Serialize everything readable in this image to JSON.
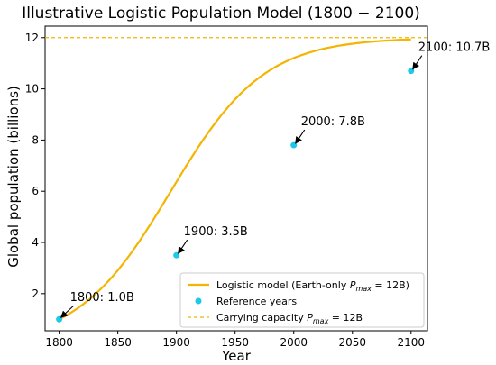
{
  "chart_data": {
    "type": "line",
    "title": "Illustrative Logistic Population Model (1800 − 2100)",
    "xlabel": "Year",
    "ylabel": "Global population (billions)",
    "xlim": [
      1788,
      2114
    ],
    "ylim": [
      0.55,
      12.45
    ],
    "xticks": [
      1800,
      1850,
      1900,
      1950,
      2000,
      2050,
      2100
    ],
    "yticks": [
      2,
      4,
      6,
      8,
      10,
      12
    ],
    "logistic": {
      "pmax": 12,
      "p0": 1.0,
      "r": 0.0252,
      "t0": 1800
    },
    "curve_color": "#f4b400",
    "point_color": "#1ec8e8",
    "capacity": {
      "value": 12,
      "color": "#f4b400"
    },
    "points": [
      {
        "x": 1800,
        "y": 1.0,
        "label": "1800: 1.0B"
      },
      {
        "x": 1900,
        "y": 3.5,
        "label": "1900: 3.5B"
      },
      {
        "x": 2000,
        "y": 7.8,
        "label": "2000: 7.8B"
      },
      {
        "x": 2100,
        "y": 10.7,
        "label": "2100: 10.7B"
      }
    ],
    "legend": {
      "position": "lower-right",
      "entries": [
        {
          "kind": "line",
          "text": "Logistic model (Earth-only P_max = 12B)"
        },
        {
          "kind": "point",
          "text": "Reference years"
        },
        {
          "kind": "dashed",
          "text": "Carrying capacity P_max = 12B"
        }
      ]
    },
    "grid": false
  }
}
